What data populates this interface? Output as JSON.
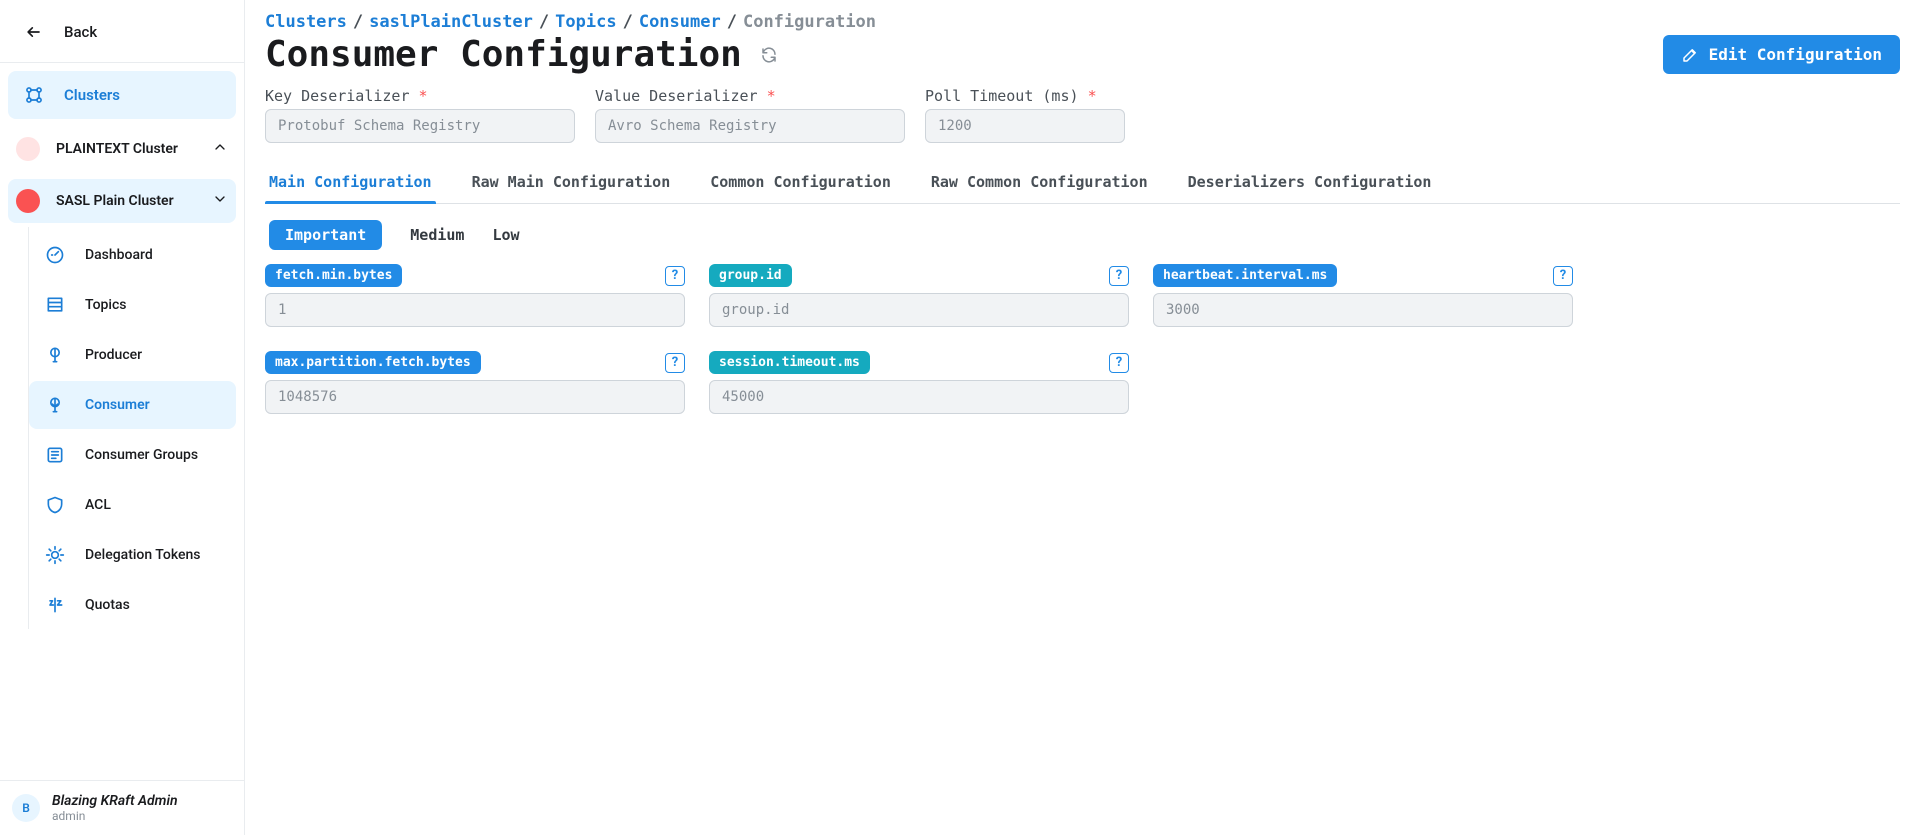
{
  "sidebar": {
    "back_label": "Back",
    "clusters_label": "Clusters",
    "clusters": [
      {
        "label": "PLAINTEXT Cluster",
        "expanded": false,
        "dot_color": "#ffe3e3"
      },
      {
        "label": "SASL Plain Cluster",
        "expanded": true,
        "dot_color": "#fa5252"
      }
    ],
    "nav": {
      "dashboard": "Dashboard",
      "topics": "Topics",
      "producer": "Producer",
      "consumer": "Consumer",
      "consumer_groups": "Consumer Groups",
      "acl": "ACL",
      "delegation_tokens": "Delegation Tokens",
      "quotas": "Quotas"
    }
  },
  "user": {
    "initial": "B",
    "name": "Blazing KRaft Admin",
    "role": "admin"
  },
  "breadcrumb": {
    "b0": "Clusters",
    "b1": "saslPlainCluster",
    "b2": "Topics",
    "b3": "Consumer",
    "b4": "Configuration"
  },
  "page": {
    "title": "Consumer Configuration",
    "edit_button": "Edit Configuration"
  },
  "fields": {
    "key_deserializer_label": "Key Deserializer",
    "key_deserializer_value": "Protobuf Schema Registry",
    "value_deserializer_label": "Value Deserializer",
    "value_deserializer_value": "Avro Schema Registry",
    "poll_timeout_label": "Poll Timeout (ms)",
    "poll_timeout_value": "1200"
  },
  "tabs": {
    "main": "Main Configuration",
    "raw_main": "Raw Main Configuration",
    "common": "Common Configuration",
    "raw_common": "Raw Common Configuration",
    "deserializers": "Deserializers Configuration"
  },
  "filters": {
    "important": "Important",
    "medium": "Medium",
    "low": "Low"
  },
  "configs": [
    {
      "label": "fetch.min.bytes",
      "color": "blue",
      "value": "1"
    },
    {
      "label": "group.id",
      "color": "teal",
      "value": "group.id"
    },
    {
      "label": "heartbeat.interval.ms",
      "color": "blue",
      "value": "3000"
    },
    {
      "label": "max.partition.fetch.bytes",
      "color": "blue",
      "value": "1048576"
    },
    {
      "label": "session.timeout.ms",
      "color": "teal",
      "value": "45000"
    }
  ],
  "colors": {
    "primary": "#228be6",
    "primary_hover": "#1c7ed6",
    "light_blue_bg": "#e7f5ff",
    "teal": "#15aabf",
    "muted": "#868e96",
    "border": "#ced4da",
    "field_bg": "#f1f3f5"
  }
}
